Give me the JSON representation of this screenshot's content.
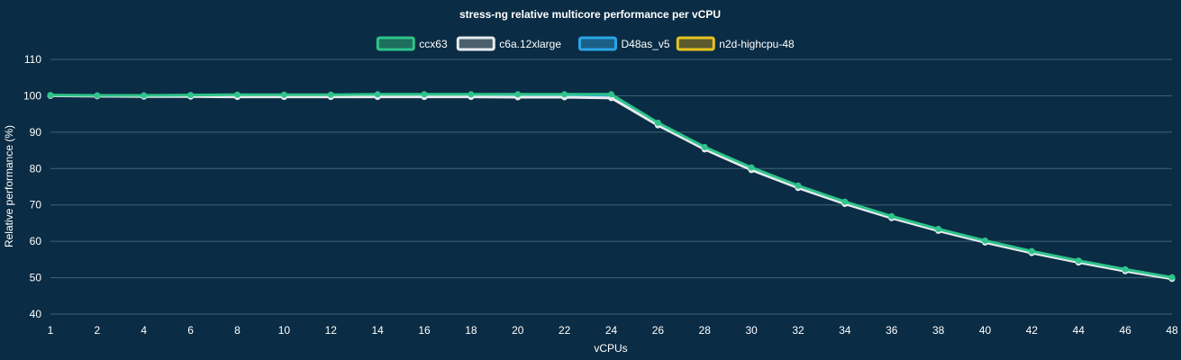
{
  "chart_data": {
    "type": "line",
    "title": "stress-ng relative multicore performance per vCPU",
    "xlabel": "vCPUs",
    "ylabel": "Relative performance (%)",
    "categories": [
      "1",
      "2",
      "4",
      "6",
      "8",
      "10",
      "12",
      "14",
      "16",
      "18",
      "20",
      "22",
      "24",
      "26",
      "28",
      "30",
      "32",
      "34",
      "36",
      "38",
      "40",
      "42",
      "44",
      "46",
      "48"
    ],
    "ylim": [
      40,
      110
    ],
    "yticks": [
      40,
      50,
      60,
      70,
      80,
      90,
      100,
      110
    ],
    "grid": true,
    "legend_position": "top-center",
    "series": [
      {
        "name": "ccx63",
        "color": "#2ec38a",
        "fill": "#1e6e5c",
        "values": [
          100.2,
          100.1,
          100.1,
          100.2,
          100.3,
          100.3,
          100.3,
          100.4,
          100.4,
          100.4,
          100.4,
          100.4,
          100.4,
          92.6,
          85.9,
          80.3,
          75.3,
          70.9,
          66.9,
          63.4,
          60.2,
          57.3,
          54.7,
          52.3,
          50.1
        ]
      },
      {
        "name": "c6a.12xlarge",
        "color": "#e6ebee",
        "fill": "#4b5f6c",
        "values": [
          100.0,
          99.9,
          99.8,
          99.8,
          99.7,
          99.7,
          99.7,
          99.7,
          99.7,
          99.7,
          99.6,
          99.6,
          99.4,
          91.9,
          85.3,
          79.6,
          74.7,
          70.3,
          66.4,
          62.9,
          59.7,
          56.8,
          54.2,
          51.8,
          49.7
        ]
      },
      {
        "name": "D48as_v5",
        "color": "#2aa5e6",
        "fill": "#1b5f87",
        "values": [
          100.1,
          100.0,
          100.0,
          100.1,
          100.1,
          100.1,
          100.2,
          100.2,
          100.2,
          100.2,
          100.1,
          100.2,
          100.1,
          92.3,
          85.6,
          79.9,
          75.0,
          70.6,
          66.7,
          63.2,
          60.0,
          57.1,
          54.5,
          52.1,
          49.9
        ]
      },
      {
        "name": "n2d-highcpu-48",
        "color": "#e7c320",
        "fill": "#5b5a2f",
        "values": [
          100.1,
          100.0,
          100.0,
          100.0,
          100.0,
          100.0,
          100.0,
          100.0,
          100.0,
          100.0,
          100.0,
          100.0,
          99.9,
          92.2,
          85.5,
          79.8,
          74.9,
          70.5,
          66.6,
          63.1,
          59.9,
          57.0,
          54.4,
          52.0,
          49.8
        ]
      }
    ]
  }
}
